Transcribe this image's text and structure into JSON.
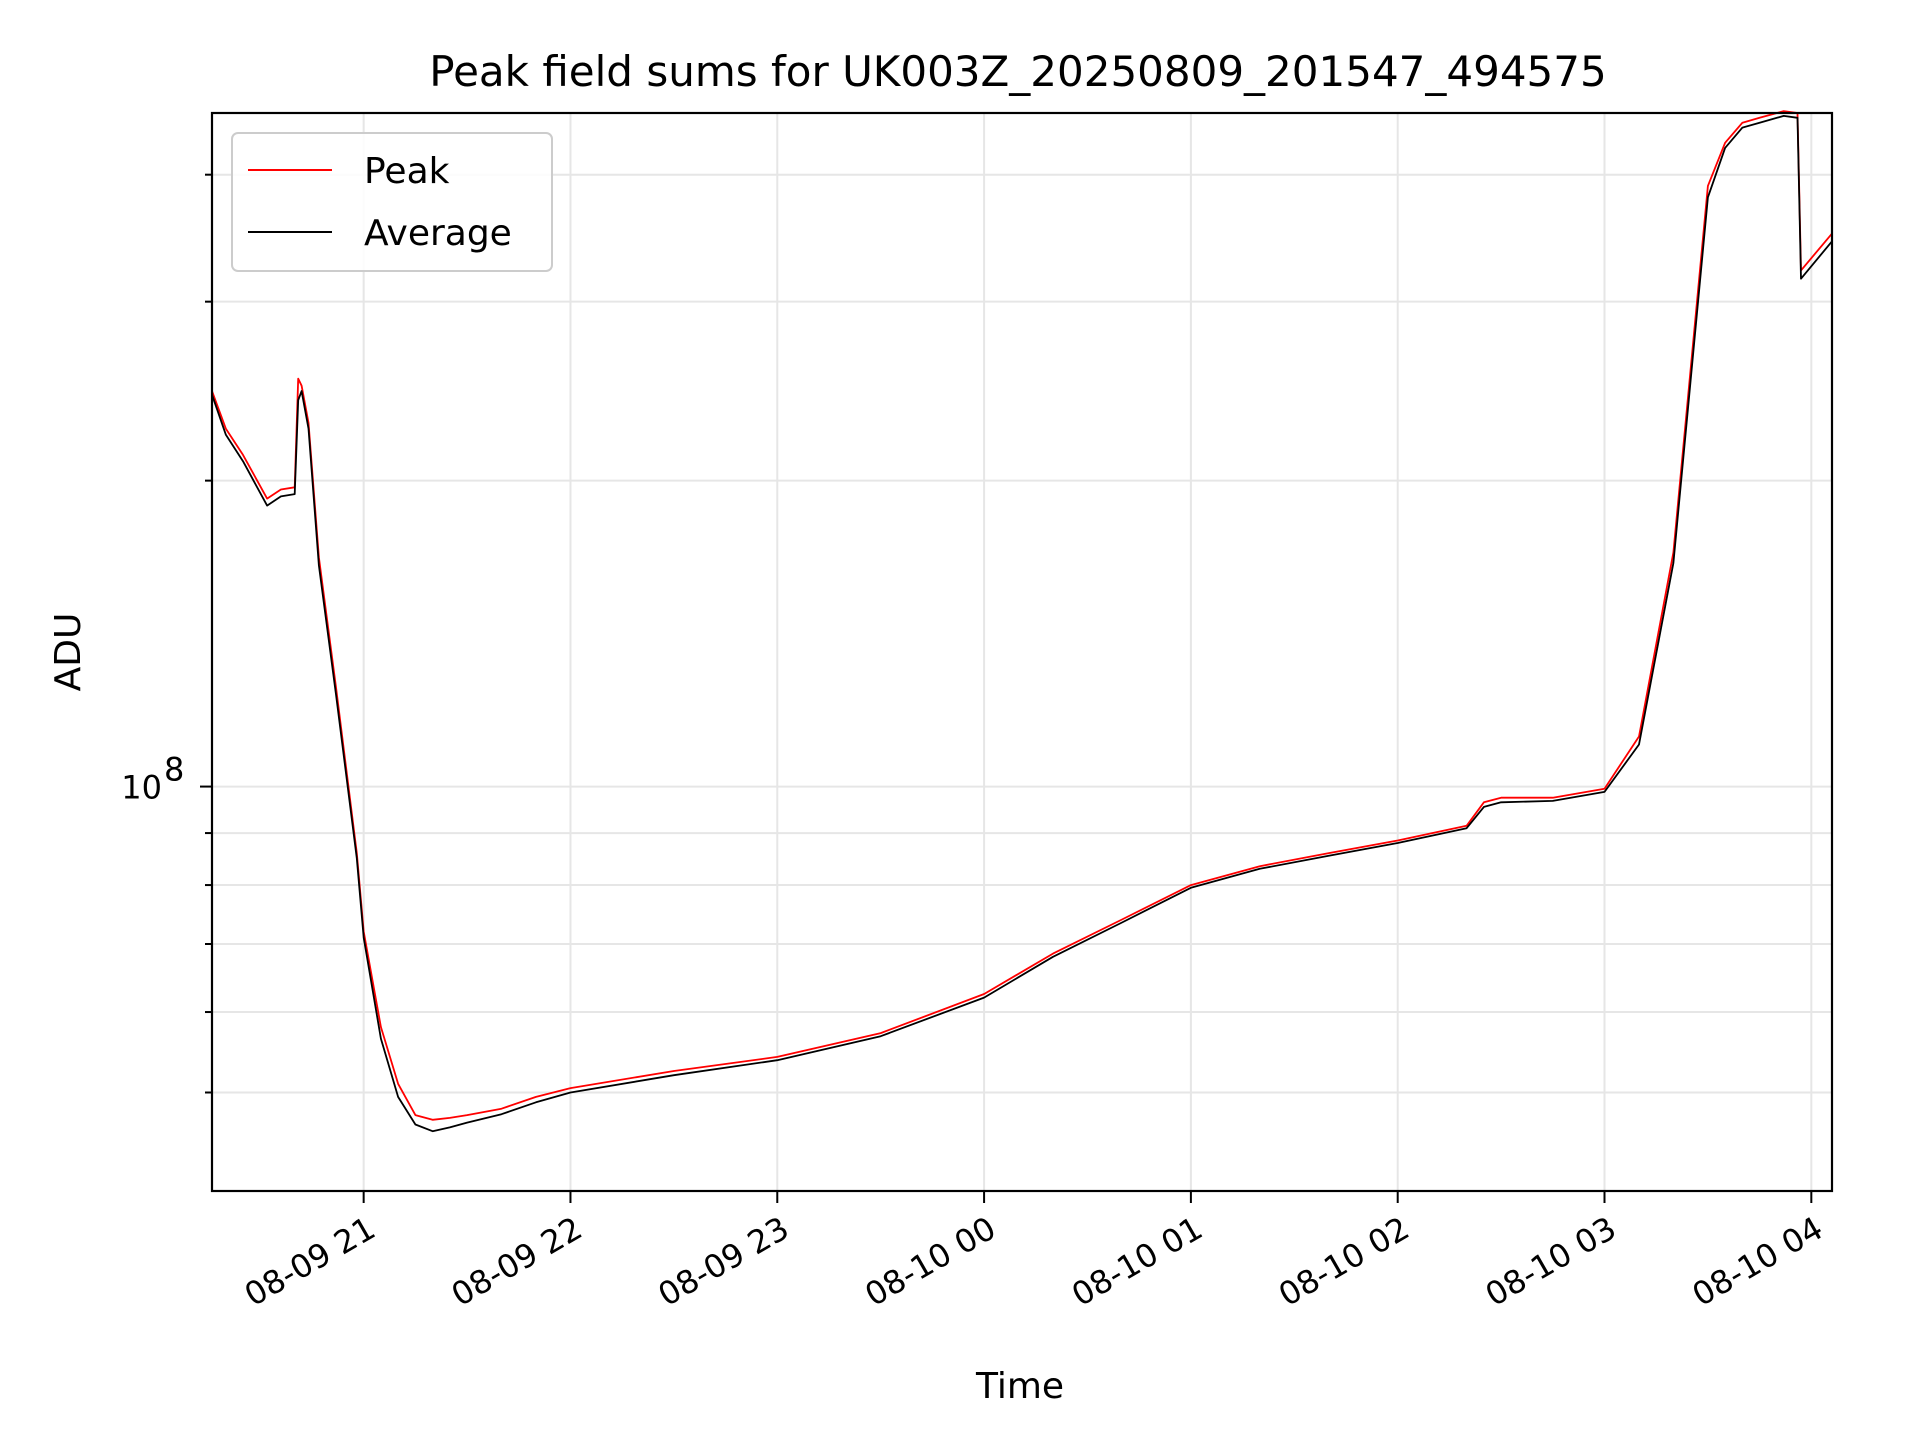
{
  "chart_data": {
    "type": "line",
    "title": "Peak field sums for UK003Z_20250809_201547_494575",
    "xlabel": "Time",
    "ylabel": "ADU",
    "yscale": "log",
    "grid": true,
    "legend": "upper-left",
    "x_tick_labels": [
      "08-09 21",
      "08-09 22",
      "08-09 23",
      "08-10 00",
      "08-10 01",
      "08-10 02",
      "08-10 03",
      "08-10 04"
    ],
    "y_tick_labels": [
      {
        "base": "10",
        "exp": "8",
        "value": 100000000
      }
    ],
    "xlim": [
      "2025-08-09 20:16",
      "2025-08-10 04:06"
    ],
    "ylim": [
      40000000,
      460000000
    ],
    "colors": {
      "Peak": "#ff0000",
      "Average": "#000000"
    },
    "series": [
      {
        "name": "Peak",
        "x": [
          "2025-08-09 20:16",
          "2025-08-09 20:20",
          "2025-08-09 20:25",
          "2025-08-09 20:32",
          "2025-08-09 20:36",
          "2025-08-09 20:40",
          "2025-08-09 20:41",
          "2025-08-09 20:42",
          "2025-08-09 20:44",
          "2025-08-09 20:47",
          "2025-08-09 20:52",
          "2025-08-09 20:58",
          "2025-08-09 21:00",
          "2025-08-09 21:05",
          "2025-08-09 21:10",
          "2025-08-09 21:15",
          "2025-08-09 21:20",
          "2025-08-09 21:25",
          "2025-08-09 21:30",
          "2025-08-09 21:40",
          "2025-08-09 21:50",
          "2025-08-09 22:00",
          "2025-08-09 22:30",
          "2025-08-09 23:00",
          "2025-08-09 23:30",
          "2025-08-10 00:00",
          "2025-08-10 00:20",
          "2025-08-10 00:40",
          "2025-08-10 01:00",
          "2025-08-10 01:20",
          "2025-08-10 01:40",
          "2025-08-10 02:00",
          "2025-08-10 02:20",
          "2025-08-10 02:25",
          "2025-08-10 02:30",
          "2025-08-10 02:45",
          "2025-08-10 03:00",
          "2025-08-10 03:10",
          "2025-08-10 03:20",
          "2025-08-10 03:30",
          "2025-08-10 03:35",
          "2025-08-10 03:40",
          "2025-08-10 03:45",
          "2025-08-10 03:52",
          "2025-08-10 03:56",
          "2025-08-10 03:57",
          "2025-08-10 04:06"
        ],
        "y": [
          245000000,
          225000000,
          212000000,
          192000000,
          196000000,
          197000000,
          252000000,
          248000000,
          228000000,
          168000000,
          125000000,
          86000000,
          72000000,
          58000000,
          51000000,
          47500000,
          47000000,
          47200000,
          47500000,
          48200000,
          49500000,
          50500000,
          52500000,
          54200000,
          57200000,
          62500000,
          68500000,
          74000000,
          80000000,
          83500000,
          86000000,
          88500000,
          91500000,
          96500000,
          97500000,
          97500000,
          99500000,
          112000000,
          170000000,
          390000000,
          430000000,
          450000000,
          455000000,
          462000000,
          460000000,
          322000000,
          350000000
        ]
      },
      {
        "name": "Average",
        "x": [
          "2025-08-09 20:16",
          "2025-08-09 20:20",
          "2025-08-09 20:25",
          "2025-08-09 20:32",
          "2025-08-09 20:36",
          "2025-08-09 20:40",
          "2025-08-09 20:41",
          "2025-08-09 20:42",
          "2025-08-09 20:44",
          "2025-08-09 20:47",
          "2025-08-09 20:52",
          "2025-08-09 20:58",
          "2025-08-09 21:00",
          "2025-08-09 21:05",
          "2025-08-09 21:10",
          "2025-08-09 21:15",
          "2025-08-09 21:20",
          "2025-08-09 21:25",
          "2025-08-09 21:30",
          "2025-08-09 21:40",
          "2025-08-09 21:50",
          "2025-08-09 22:00",
          "2025-08-09 22:30",
          "2025-08-09 23:00",
          "2025-08-09 23:30",
          "2025-08-10 00:00",
          "2025-08-10 00:20",
          "2025-08-10 00:40",
          "2025-08-10 01:00",
          "2025-08-10 01:20",
          "2025-08-10 01:40",
          "2025-08-10 02:00",
          "2025-08-10 02:20",
          "2025-08-10 02:25",
          "2025-08-10 02:30",
          "2025-08-10 02:45",
          "2025-08-10 03:00",
          "2025-08-10 03:10",
          "2025-08-10 03:20",
          "2025-08-10 03:30",
          "2025-08-10 03:35",
          "2025-08-10 03:40",
          "2025-08-10 03:45",
          "2025-08-10 03:52",
          "2025-08-10 03:56",
          "2025-08-10 03:57",
          "2025-08-10 04:06"
        ],
        "y": [
          243000000,
          222000000,
          209000000,
          189000000,
          193000000,
          194000000,
          240000000,
          245000000,
          225000000,
          165000000,
          123000000,
          85000000,
          71000000,
          56500000,
          49500000,
          46500000,
          45800000,
          46200000,
          46700000,
          47600000,
          48900000,
          50000000,
          52000000,
          53800000,
          56800000,
          62000000,
          68000000,
          73500000,
          79500000,
          83000000,
          85500000,
          88000000,
          91000000,
          95500000,
          96500000,
          96800000,
          98800000,
          110000000,
          166000000,
          380000000,
          425000000,
          445000000,
          450000000,
          457000000,
          455000000,
          316000000,
          344000000
        ]
      }
    ]
  }
}
